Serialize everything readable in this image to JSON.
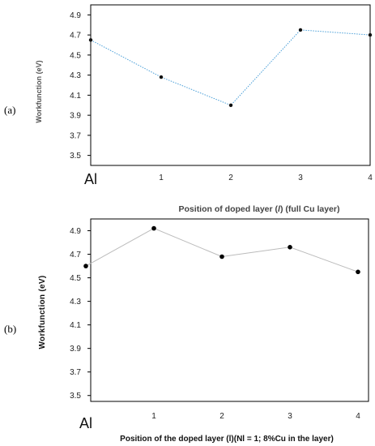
{
  "chart_data": [
    {
      "panel_label": "(a)",
      "type": "line",
      "categories": [
        "Al",
        "1",
        "2",
        "3",
        "4"
      ],
      "values": [
        4.65,
        4.28,
        4.0,
        4.75,
        4.7
      ],
      "xlabel_parts": [
        "Position of doped layer (",
        "l",
        ") (full Cu layer)"
      ],
      "ylabel": "Workfunction (eV)",
      "yticks": [
        "3.5",
        "3.7",
        "3.9",
        "4.1",
        "4.3",
        "4.5",
        "4.7",
        "4.9"
      ],
      "ylim": [
        3.4,
        5.0
      ],
      "line_color": "#4a9fd8",
      "line_style": "dotted",
      "marker_color": "#111111"
    },
    {
      "panel_label": "(b)",
      "type": "line",
      "categories": [
        "Al",
        "1",
        "2",
        "3",
        "4"
      ],
      "values": [
        4.6,
        4.92,
        4.68,
        4.76,
        4.55
      ],
      "xlabel": "Position of the doped layer (l)(Nl = 1; 8%Cu in the layer)",
      "ylabel": "Workfunction (eV)",
      "yticks": [
        "3.5",
        "3.7",
        "3.9",
        "4.1",
        "4.3",
        "4.5",
        "4.7",
        "4.9"
      ],
      "ylim": [
        3.45,
        5.0
      ],
      "line_color": "#bbbbbb",
      "line_style": "solid",
      "marker_color": "#000000"
    }
  ]
}
